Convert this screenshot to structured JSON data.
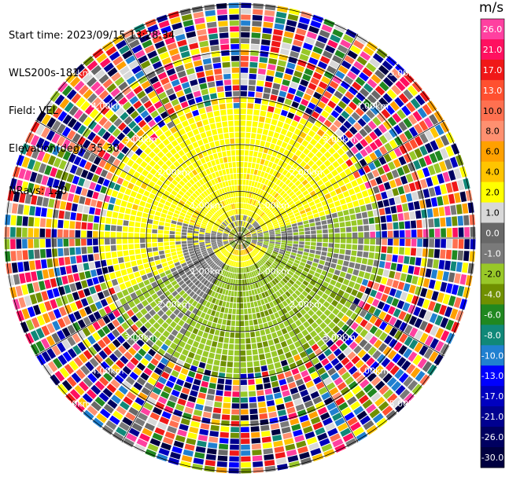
{
  "header": {
    "start_time": "Start time: 2023/09/15 13:28:34",
    "instrument": "WLS200s-181",
    "field": "Field: VEL",
    "elevation": "Elevation(deg): 35.30",
    "nrays": "NRays: 120"
  },
  "colorbar": {
    "unit": "m/s",
    "levels": [
      {
        "label": "26.0",
        "color": "#ff40a0"
      },
      {
        "label": "21.0",
        "color": "#ff1060"
      },
      {
        "label": "17.0",
        "color": "#f01818"
      },
      {
        "label": "13.0",
        "color": "#ff5030"
      },
      {
        "label": "10.0",
        "color": "#ff7050"
      },
      {
        "label": "8.0",
        "color": "#ff9070"
      },
      {
        "label": "6.0",
        "color": "#ffa000"
      },
      {
        "label": "4.0",
        "color": "#ffc400"
      },
      {
        "label": "2.0",
        "color": "#ffff00"
      },
      {
        "label": "1.0",
        "color": "#d8d8d8"
      },
      {
        "label": "0.0",
        "color": "#686868"
      },
      {
        "label": "-1.0",
        "color": "#7a7a7a"
      },
      {
        "label": "-2.0",
        "color": "#98c828"
      },
      {
        "label": "-4.0",
        "color": "#709000"
      },
      {
        "label": "-6.0",
        "color": "#208820"
      },
      {
        "label": "-8.0",
        "color": "#108878"
      },
      {
        "label": "-10.0",
        "color": "#2080d0"
      },
      {
        "label": "-13.0",
        "color": "#0000ff"
      },
      {
        "label": "-17.0",
        "color": "#0000c0"
      },
      {
        "label": "-21.0",
        "color": "#000090"
      },
      {
        "label": "-26.0",
        "color": "#000060"
      },
      {
        "label": "-30.0",
        "color": "#000040"
      }
    ]
  },
  "chart_data": {
    "type": "heatmap",
    "projection": "polar PPI (azimuth vs range)",
    "rays": 120,
    "range_rings": [
      "1.00km",
      "2.00km",
      "3.00km",
      "4.00km",
      "5.00km"
    ],
    "regions": [
      {
        "region": "center",
        "description": "mixed small velocities near 0 m/s"
      },
      {
        "region": "north ring 1-3 km",
        "velocity": "≈ +2 m/s (yellow)"
      },
      {
        "region": "west/south-west 1-2 km",
        "velocity": "≈ 0 m/s (gray)"
      },
      {
        "region": "south/east 1-3 km",
        "velocity": "≈ -2 to -4 m/s (green)"
      },
      {
        "region": "beyond ~3 km",
        "velocity": "noise: random colors"
      }
    ]
  }
}
